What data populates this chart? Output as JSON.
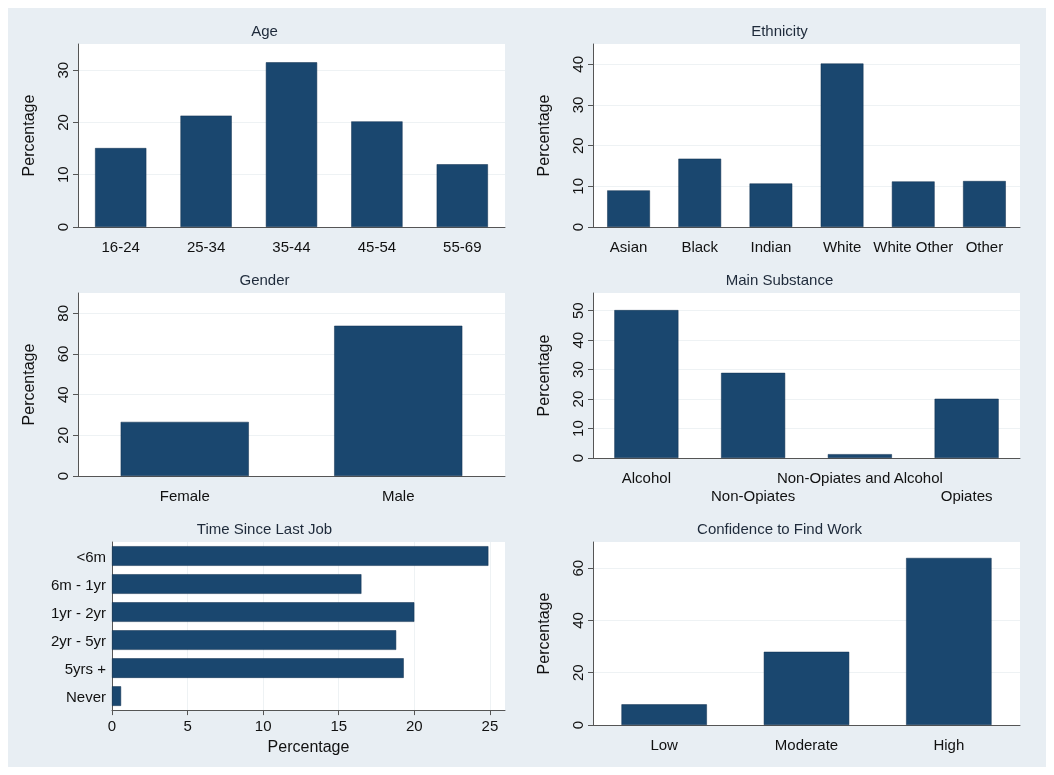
{
  "chart_data": [
    {
      "type": "bar",
      "title": "Age",
      "ylabel": "Percentage",
      "categories": [
        "16-24",
        "25-34",
        "35-44",
        "45-54",
        "55-69"
      ],
      "values": [
        15.1,
        21.3,
        31.5,
        20.2,
        12.0
      ],
      "color": "#1a476f",
      "ylim": [
        0,
        35
      ],
      "yticks": [
        0,
        10,
        20,
        30
      ],
      "grid": "y"
    },
    {
      "type": "bar",
      "title": "Ethnicity",
      "ylabel": "Percentage",
      "categories": [
        "Asian",
        "Black",
        "Indian",
        "White",
        "White Other",
        "Other"
      ],
      "values": [
        9.0,
        16.8,
        10.7,
        40.2,
        11.2,
        11.3
      ],
      "color": "#1a476f",
      "ylim": [
        0,
        45
      ],
      "yticks": [
        0,
        10,
        20,
        30,
        40
      ],
      "grid": "y"
    },
    {
      "type": "bar",
      "title": "Gender",
      "ylabel": "Percentage",
      "categories": [
        "Female",
        "Male"
      ],
      "values": [
        26.6,
        73.9
      ],
      "color": "#1a476f",
      "ylim": [
        0,
        90
      ],
      "yticks": [
        0,
        20,
        40,
        60,
        80
      ],
      "grid": "y"
    },
    {
      "type": "bar",
      "title": "Main Substance",
      "ylabel": "Percentage",
      "categories": [
        "Alcohol",
        "Non-Opiates",
        "Non-Opiates and Alcohol",
        "Opiates"
      ],
      "values": [
        50.2,
        28.9,
        1.3,
        20.1
      ],
      "color": "#1a476f",
      "ylim": [
        0,
        56
      ],
      "yticks": [
        0,
        10,
        20,
        30,
        40,
        50
      ],
      "grid": "y"
    },
    {
      "type": "bar",
      "orientation": "horizontal",
      "title": "Time Since Last Job",
      "xlabel": "Percentage",
      "categories": [
        "<6m",
        "6m - 1yr",
        "1yr - 2yr",
        "2yr - 5yr",
        "5yrs +",
        "Never"
      ],
      "values": [
        24.9,
        16.5,
        20.0,
        18.8,
        19.3,
        0.6
      ],
      "color": "#1a476f",
      "xlim": [
        0,
        26
      ],
      "xticks": [
        0,
        5,
        10,
        15,
        20,
        25
      ],
      "grid": "x"
    },
    {
      "type": "bar",
      "title": "Confidence to Find Work",
      "ylabel": "Percentage",
      "categories": [
        "Low",
        "Moderate",
        "High"
      ],
      "values": [
        7.9,
        28.0,
        63.9
      ],
      "color": "#1a476f",
      "ylim": [
        0,
        70
      ],
      "yticks": [
        0,
        20,
        40,
        60
      ],
      "grid": "y"
    }
  ]
}
